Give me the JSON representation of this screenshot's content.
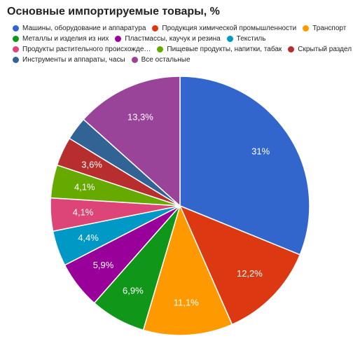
{
  "chart_data": {
    "type": "pie",
    "title": "Основные импортируемые товары, %",
    "legend_position": "top",
    "slices": [
      {
        "name": "Машины, оборудование и аппаратура",
        "value": 31,
        "label": "31%",
        "color": "#3366cc"
      },
      {
        "name": "Продукция химической промышленности",
        "value": 12.2,
        "label": "12,2%",
        "color": "#dc3912"
      },
      {
        "name": "Транспорт",
        "value": 11.1,
        "label": "11,1%",
        "color": "#ff9900"
      },
      {
        "name": "Металлы и изделия из них",
        "value": 6.9,
        "label": "6,9%",
        "color": "#109618"
      },
      {
        "name": "Пластмассы, каучук и резина",
        "value": 5.9,
        "label": "5,9%",
        "color": "#990099"
      },
      {
        "name": "Текстиль",
        "value": 4.4,
        "label": "4,4%",
        "color": "#0099c6"
      },
      {
        "name": "Продукты растительного происхожде…",
        "value": 4.1,
        "label": "4,1%",
        "color": "#dd4477"
      },
      {
        "name": "Пищевые продукты, напитки, табак",
        "value": 4.1,
        "label": "4,1%",
        "color": "#66aa00"
      },
      {
        "name": "Скрытый раздел",
        "value": 3.6,
        "label": "3,6%",
        "color": "#b82e2e"
      },
      {
        "name": "Инструменты и аппараты, часы",
        "value": 2.9,
        "label": "",
        "color": "#316395"
      },
      {
        "name": "Все остальные",
        "value": 13.3,
        "label": "13,3%",
        "color": "#994499"
      }
    ]
  }
}
